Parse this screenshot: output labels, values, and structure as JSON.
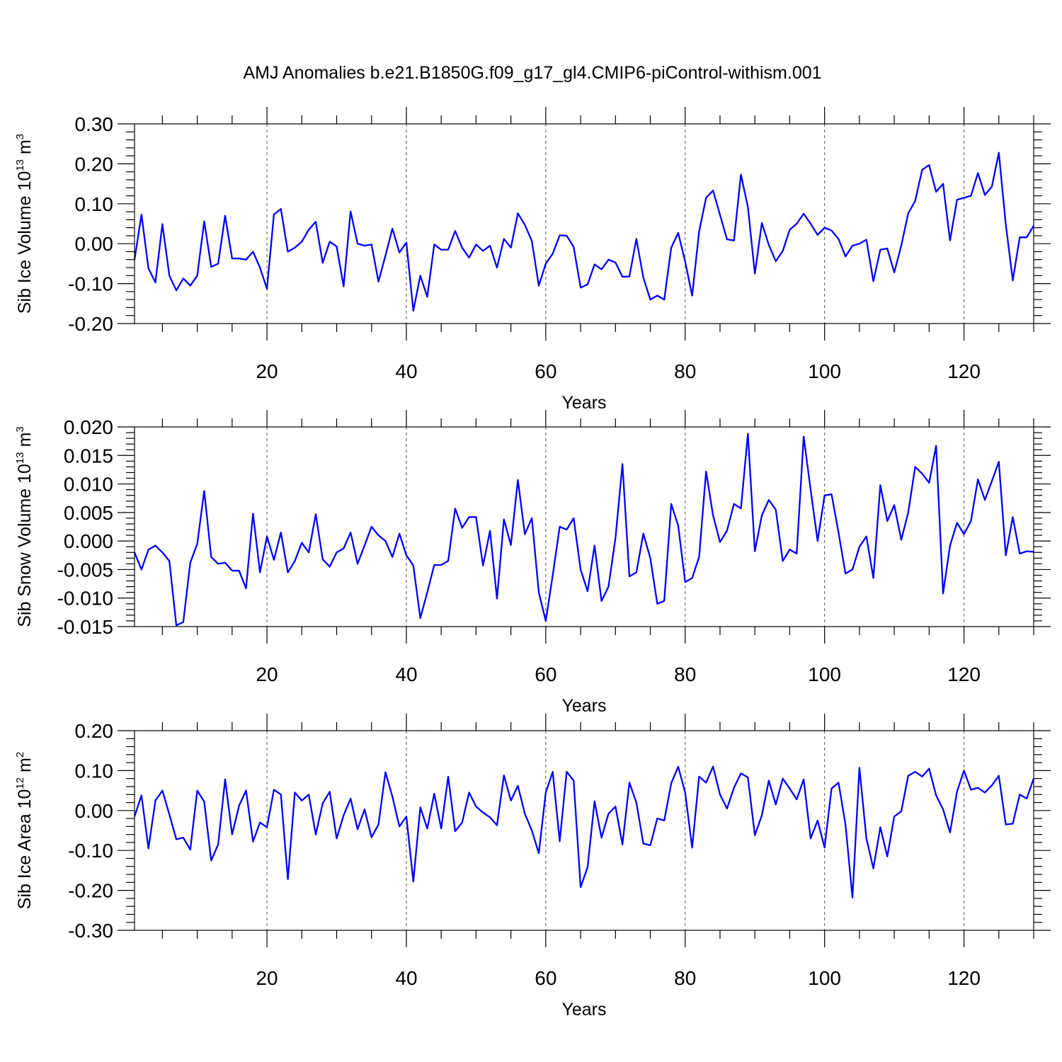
{
  "title": "AMJ Anomalies b.e21.B1850G.f09_g17_gl4.CMIP6-piControl-withism.001",
  "chart_data": [
    {
      "type": "line",
      "xlabel": "Years",
      "ylabel_text": "Sib Ice Volume 10",
      "ylabel_exp": "13",
      "ylabel_unit": " m",
      "ylabel_unit_exp": "3",
      "xlim": [
        1,
        130
      ],
      "ylim": [
        -0.2,
        0.3
      ],
      "x_ticks": [
        20,
        40,
        60,
        80,
        100,
        120
      ],
      "y_ticks": [
        -0.2,
        -0.1,
        0.0,
        0.1,
        0.2,
        0.3
      ],
      "y_tick_labels": [
        "-0.20",
        "-0.10",
        "0.00",
        "0.10",
        "0.20",
        "0.30"
      ],
      "grid_x": true,
      "color": "#0000ff",
      "series": [
        {
          "values": [
            -0.04,
            0.073,
            -0.062,
            -0.097,
            0.049,
            -0.08,
            -0.117,
            -0.087,
            -0.105,
            -0.08,
            0.056,
            -0.058,
            -0.05,
            0.07,
            -0.037,
            -0.037,
            -0.04,
            -0.02,
            -0.06,
            -0.113,
            0.073,
            0.087,
            -0.02,
            -0.01,
            0.005,
            0.035,
            0.055,
            -0.048,
            0.005,
            -0.007,
            -0.107,
            0.081,
            0.0,
            -0.005,
            -0.002,
            -0.095,
            -0.03,
            0.038,
            -0.022,
            0.003,
            -0.168,
            -0.08,
            -0.133,
            -0.002,
            -0.015,
            -0.015,
            0.032,
            -0.01,
            -0.035,
            -0.002,
            -0.018,
            -0.005,
            -0.06,
            0.012,
            -0.01,
            0.076,
            0.047,
            0.007,
            -0.105,
            -0.05,
            -0.025,
            0.021,
            0.02,
            -0.008,
            -0.11,
            -0.102,
            -0.052,
            -0.064,
            -0.04,
            -0.047,
            -0.083,
            -0.082,
            0.012,
            -0.085,
            -0.14,
            -0.13,
            -0.14,
            -0.01,
            0.027,
            -0.045,
            -0.13,
            0.03,
            0.115,
            0.133,
            0.072,
            0.011,
            0.008,
            0.173,
            0.092,
            -0.075,
            0.052,
            -0.003,
            -0.044,
            -0.018,
            0.035,
            0.05,
            0.075,
            0.05,
            0.022,
            0.04,
            0.033,
            0.012,
            -0.032,
            -0.005,
            0.0,
            0.01,
            -0.094,
            -0.015,
            -0.012,
            -0.072,
            -0.005,
            0.076,
            0.107,
            0.185,
            0.197,
            0.13,
            0.15,
            0.008,
            0.11,
            0.115,
            0.12,
            0.177,
            0.122,
            0.143,
            0.228,
            0.048,
            -0.092,
            0.016,
            0.016,
            0.045
          ]
        }
      ]
    },
    {
      "type": "line",
      "xlabel": "Years",
      "ylabel_text": "Sib Snow Volume 10",
      "ylabel_exp": "13",
      "ylabel_unit": " m",
      "ylabel_unit_exp": "3",
      "xlim": [
        1,
        130
      ],
      "ylim": [
        -0.015,
        0.02
      ],
      "x_ticks": [
        20,
        40,
        60,
        80,
        100,
        120
      ],
      "y_ticks": [
        -0.015,
        -0.01,
        -0.005,
        0.0,
        0.005,
        0.01,
        0.015,
        0.02
      ],
      "y_tick_labels": [
        "-0.015",
        "-0.010",
        "-0.005",
        "0.000",
        "0.005",
        "0.010",
        "0.015",
        "0.020"
      ],
      "grid_x": true,
      "color": "#0000ff",
      "series": [
        {
          "values": [
            -0.002,
            -0.005,
            -0.0015,
            -0.0008,
            -0.002,
            -0.0035,
            -0.0148,
            -0.0142,
            -0.0038,
            -0.0005,
            0.0088,
            -0.0028,
            -0.004,
            -0.0038,
            -0.0052,
            -0.0052,
            -0.0083,
            0.0048,
            -0.0055,
            0.0008,
            -0.0033,
            0.0015,
            -0.0055,
            -0.0035,
            -0.0003,
            -0.002,
            0.0047,
            -0.0032,
            -0.0045,
            -0.002,
            -0.0013,
            0.0015,
            -0.004,
            -0.0008,
            0.0025,
            0.001,
            0.0,
            -0.0028,
            0.0013,
            -0.0025,
            -0.0043,
            -0.0135,
            -0.009,
            -0.0042,
            -0.0042,
            -0.0035,
            0.0057,
            0.0023,
            0.0042,
            0.0042,
            -0.0043,
            0.0018,
            -0.0101,
            0.0038,
            -0.0007,
            0.0107,
            0.0012,
            0.004,
            -0.009,
            -0.014,
            -0.006,
            0.0025,
            0.002,
            0.004,
            -0.005,
            -0.0088,
            -0.0008,
            -0.0105,
            -0.008,
            0.0005,
            0.0135,
            -0.0062,
            -0.0055,
            0.0013,
            -0.003,
            -0.011,
            -0.0105,
            0.0065,
            0.0027,
            -0.0072,
            -0.0065,
            -0.0028,
            0.0122,
            0.0045,
            -0.0002,
            0.0018,
            0.0065,
            0.0057,
            0.0188,
            -0.0018,
            0.0045,
            0.0072,
            0.0055,
            -0.0035,
            -0.0015,
            -0.0022,
            0.0183,
            0.009,
            0.0,
            0.008,
            0.0082,
            0.0015,
            -0.0057,
            -0.005,
            -0.001,
            0.0008,
            -0.0065,
            0.0098,
            0.0035,
            0.0063,
            0.0002,
            0.005,
            0.013,
            0.0118,
            0.0102,
            0.0167,
            -0.0092,
            -0.0008,
            0.0032,
            0.0012,
            0.0035,
            0.0108,
            0.0072,
            0.0105,
            0.0139,
            -0.0025,
            0.0042,
            -0.0022,
            -0.0018,
            -0.0019
          ]
        }
      ]
    },
    {
      "type": "line",
      "xlabel": "Years",
      "ylabel_text": "Sib Ice Area 10",
      "ylabel_exp": "12",
      "ylabel_unit": " m",
      "ylabel_unit_exp": "2",
      "xlim": [
        1,
        130
      ],
      "ylim": [
        -0.3,
        0.2
      ],
      "x_ticks": [
        20,
        40,
        60,
        80,
        100,
        120
      ],
      "y_ticks": [
        -0.3,
        -0.2,
        -0.1,
        0.0,
        0.1,
        0.2
      ],
      "y_tick_labels": [
        "-0.30",
        "-0.20",
        "-0.10",
        "0.00",
        "0.10",
        "0.20"
      ],
      "grid_x": true,
      "color": "#0000ff",
      "series": [
        {
          "values": [
            -0.015,
            0.038,
            -0.095,
            0.025,
            0.05,
            -0.01,
            -0.072,
            -0.068,
            -0.098,
            0.05,
            0.022,
            -0.125,
            -0.085,
            0.078,
            -0.06,
            0.012,
            0.05,
            -0.078,
            -0.03,
            -0.042,
            0.052,
            0.04,
            -0.172,
            0.045,
            0.025,
            0.04,
            -0.06,
            0.018,
            0.047,
            -0.07,
            -0.012,
            0.03,
            -0.047,
            0.003,
            -0.067,
            -0.035,
            0.096,
            0.035,
            -0.04,
            -0.015,
            -0.178,
            0.008,
            -0.045,
            0.042,
            -0.045,
            0.085,
            -0.052,
            -0.03,
            0.045,
            0.01,
            -0.005,
            -0.017,
            -0.037,
            0.088,
            0.025,
            0.062,
            -0.008,
            -0.05,
            -0.107,
            0.045,
            0.097,
            -0.077,
            0.097,
            0.075,
            -0.192,
            -0.142,
            0.023,
            -0.068,
            -0.008,
            0.01,
            -0.085,
            0.07,
            0.02,
            -0.083,
            -0.087,
            -0.02,
            -0.025,
            0.068,
            0.11,
            0.045,
            -0.093,
            0.085,
            0.07,
            0.11,
            0.04,
            0.005,
            0.057,
            0.093,
            0.083,
            -0.062,
            -0.012,
            0.075,
            0.015,
            0.08,
            0.055,
            0.028,
            0.078,
            -0.07,
            -0.025,
            -0.093,
            0.055,
            0.07,
            -0.035,
            -0.218,
            0.107,
            -0.07,
            -0.145,
            -0.042,
            -0.115,
            -0.015,
            -0.002,
            0.087,
            0.097,
            0.085,
            0.105,
            0.038,
            0.003,
            -0.055,
            0.047,
            0.1,
            0.052,
            0.057,
            0.045,
            0.063,
            0.087,
            -0.035,
            -0.033,
            0.04,
            0.03,
            0.08
          ]
        }
      ]
    }
  ]
}
